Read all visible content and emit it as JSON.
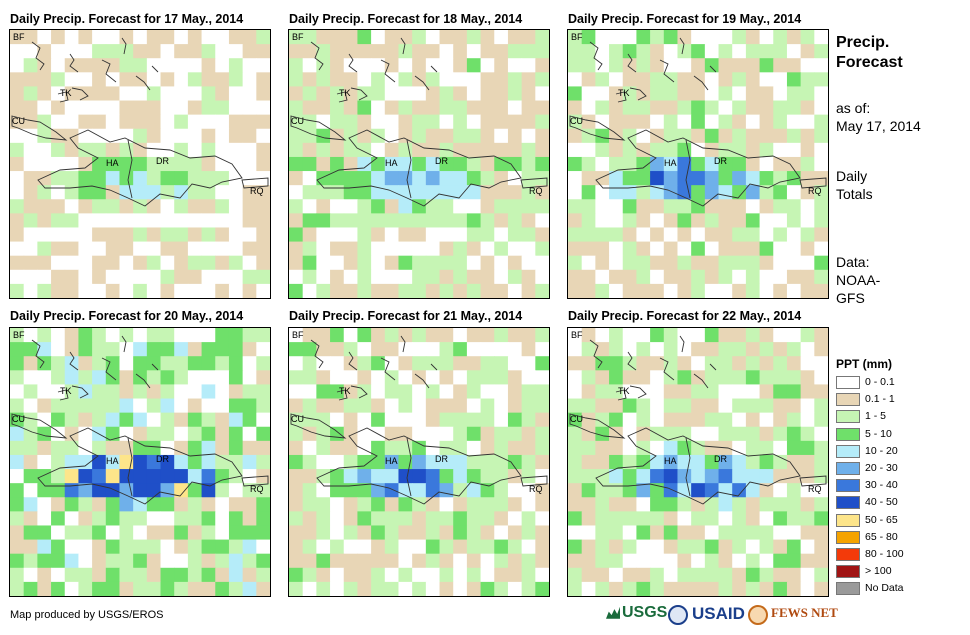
{
  "panels": [
    {
      "title": "Daily Precip. Forecast for 17 May., 2014",
      "seed": 17,
      "wet": 0.55
    },
    {
      "title": "Daily Precip. Forecast for 18 May., 2014",
      "seed": 18,
      "wet": 0.75
    },
    {
      "title": "Daily Precip. Forecast for 19 May., 2014",
      "seed": 19,
      "wet": 0.85
    },
    {
      "title": "Daily Precip. Forecast for 20 May., 2014",
      "seed": 20,
      "wet": 1.25
    },
    {
      "title": "Daily Precip. Forecast for 21 May., 2014",
      "seed": 21,
      "wet": 0.85
    },
    {
      "title": "Daily Precip. Forecast for 22 May., 2014",
      "seed": 22,
      "wet": 0.9
    }
  ],
  "map_labels": {
    "bf": "BF",
    "tk": "TK",
    "cu": "CU",
    "ha": "HA",
    "dr": "DR",
    "rq": "RQ"
  },
  "side": {
    "title_line1": "Precip.",
    "title_line2": "Forecast",
    "asof_label": "as of:",
    "asof_date": "May 17, 2014",
    "totals_line1": "Daily",
    "totals_line2": "Totals",
    "data_line1": "Data:",
    "data_line2": "NOAA-",
    "data_line3": "GFS"
  },
  "legend": {
    "title": "PPT (mm)",
    "items": [
      {
        "label": "0 - 0.1",
        "color": "#ffffff"
      },
      {
        "label": "0.1 - 1",
        "color": "#e8d6b6"
      },
      {
        "label": "1 - 5",
        "color": "#c6f5b4"
      },
      {
        "label": "5 - 10",
        "color": "#6fe06a"
      },
      {
        "label": "10 - 20",
        "color": "#b5ecf9"
      },
      {
        "label": "20 - 30",
        "color": "#6fb0ea"
      },
      {
        "label": "30 - 40",
        "color": "#3a78dc"
      },
      {
        "label": "40 - 50",
        "color": "#1f4fc8"
      },
      {
        "label": "50 - 65",
        "color": "#fde58a"
      },
      {
        "label": "65 - 80",
        "color": "#f5a300"
      },
      {
        "label": "80 - 100",
        "color": "#f33a0a"
      },
      {
        "label": "> 100",
        "color": "#a01414"
      },
      {
        "label": "No Data",
        "color": "#9a9a9a"
      }
    ]
  },
  "credit": "Map produced by USGS/EROS",
  "logos": {
    "usgs": "USGS",
    "usaid": "USAID",
    "fewsnet": "FEWS NET"
  }
}
